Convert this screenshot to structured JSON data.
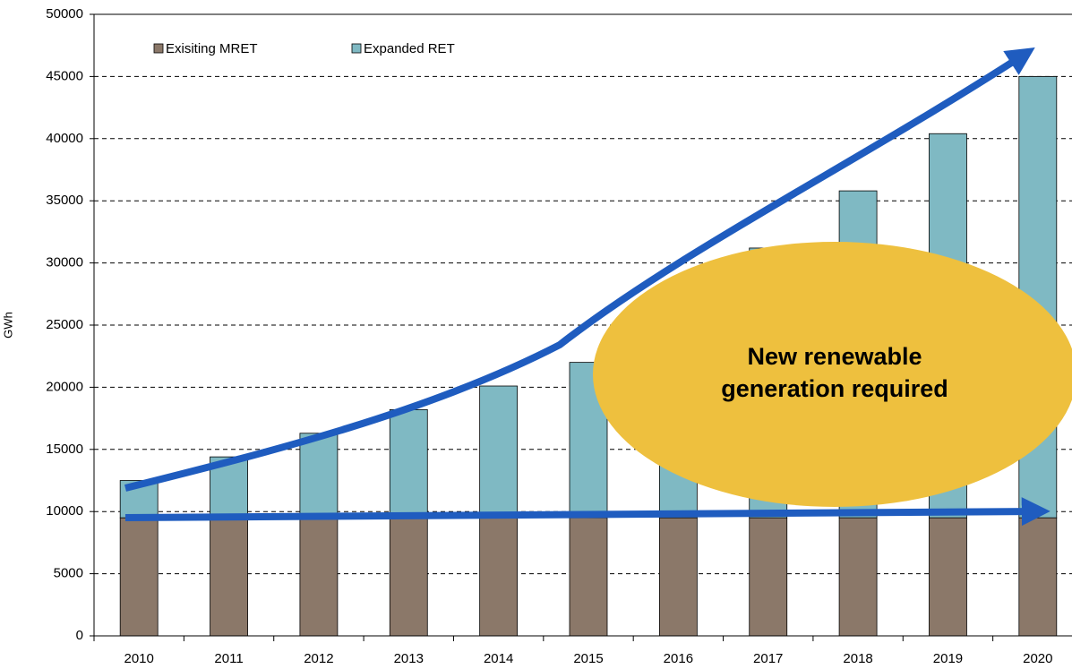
{
  "chart_data": {
    "type": "stacked_bar",
    "ylabel": "GWh",
    "categories": [
      "2010",
      "2011",
      "2012",
      "2013",
      "2014",
      "2015",
      "2016",
      "2017",
      "2018",
      "2019",
      "2020"
    ],
    "series": [
      {
        "name": "Exisiting MRET",
        "color": "#8b7869",
        "values": [
          9500,
          9500,
          9500,
          9500,
          9500,
          9500,
          9500,
          9500,
          9500,
          9500,
          9500
        ]
      },
      {
        "name": "Expanded RET",
        "color": "#7fb9c3",
        "values": [
          3000,
          4900,
          6800,
          8700,
          10600,
          12500,
          17100,
          21700,
          26300,
          30900,
          35500
        ]
      }
    ],
    "ylim": [
      0,
      50000
    ],
    "yticks": [
      0,
      5000,
      10000,
      15000,
      20000,
      25000,
      30000,
      35000,
      40000,
      45000,
      50000
    ],
    "grid": true,
    "legend": "top-left",
    "annotation": "New renewable generation required"
  }
}
